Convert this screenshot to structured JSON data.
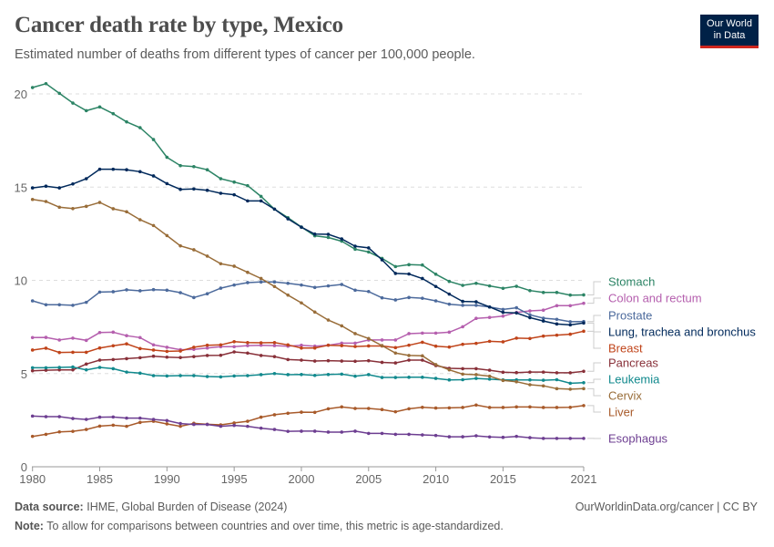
{
  "header": {
    "title": "Cancer death rate by type, Mexico",
    "subtitle": "Estimated number of deaths from different types of cancer per 100,000 people.",
    "logo_line1": "Our World",
    "logo_line2": "in Data"
  },
  "footer": {
    "source_label": "Data source:",
    "source": "IHME, Global Burden of Disease (2024)",
    "url": "OurWorldinData.org/cancer | CC BY",
    "note_label": "Note:",
    "note": "To allow for comparisons between countries and over time, this metric is age-standardized."
  },
  "chart_data": {
    "type": "line",
    "title": "Cancer death rate by type, Mexico",
    "xlim": [
      1980,
      2021
    ],
    "ylim": [
      0,
      20
    ],
    "y_ticks": [
      0,
      5,
      10,
      15,
      20
    ],
    "x_ticks": [
      1980,
      1985,
      1990,
      1995,
      2000,
      2005,
      2010,
      2015,
      2021
    ],
    "grid": "horizontal dashed",
    "legend": "right (line labels)",
    "x_start": 1980,
    "series": [
      {
        "name": "Stomach",
        "color": "#2c8465",
        "values": [
          20.34,
          20.55,
          20.03,
          19.51,
          19.1,
          19.3,
          18.94,
          18.5,
          18.19,
          17.55,
          16.6,
          16.15,
          16.1,
          15.93,
          15.45,
          15.27,
          15.08,
          14.5,
          13.82,
          13.36,
          12.86,
          12.39,
          12.3,
          12.1,
          11.67,
          11.52,
          11.18,
          10.74,
          10.84,
          10.82,
          10.33,
          9.94,
          9.73,
          9.84,
          9.7,
          9.57,
          9.68,
          9.45,
          9.35,
          9.35,
          9.21,
          9.22
        ]
      },
      {
        "name": "Colon and rectum",
        "color": "#b55fae",
        "values": [
          6.93,
          6.94,
          6.8,
          6.9,
          6.78,
          7.2,
          7.22,
          7.03,
          6.93,
          6.54,
          6.41,
          6.28,
          6.3,
          6.37,
          6.44,
          6.44,
          6.5,
          6.52,
          6.5,
          6.47,
          6.52,
          6.47,
          6.52,
          6.63,
          6.63,
          6.8,
          6.8,
          6.8,
          7.14,
          7.17,
          7.17,
          7.22,
          7.51,
          7.96,
          8.01,
          8.08,
          8.28,
          8.36,
          8.4,
          8.64,
          8.64,
          8.77
        ]
      },
      {
        "name": "Prostate",
        "color": "#4c6a9c",
        "values": [
          8.9,
          8.69,
          8.69,
          8.66,
          8.82,
          9.37,
          9.39,
          9.49,
          9.44,
          9.5,
          9.47,
          9.34,
          9.08,
          9.28,
          9.58,
          9.75,
          9.88,
          9.91,
          9.91,
          9.84,
          9.75,
          9.62,
          9.7,
          9.78,
          9.47,
          9.4,
          9.06,
          8.95,
          9.08,
          9.04,
          8.9,
          8.72,
          8.66,
          8.66,
          8.57,
          8.44,
          8.53,
          8.15,
          7.97,
          7.91,
          7.78,
          7.79
        ]
      },
      {
        "name": "Lung, trachea and bronchus",
        "color": "#00295b",
        "values": [
          14.96,
          15.05,
          14.96,
          15.17,
          15.45,
          15.96,
          15.96,
          15.93,
          15.83,
          15.6,
          15.19,
          14.88,
          14.9,
          14.83,
          14.67,
          14.59,
          14.26,
          14.26,
          13.82,
          13.3,
          12.85,
          12.48,
          12.47,
          12.22,
          11.83,
          11.74,
          11.1,
          10.37,
          10.34,
          10.1,
          9.67,
          9.26,
          8.87,
          8.85,
          8.57,
          8.28,
          8.25,
          8.0,
          7.82,
          7.66,
          7.61,
          7.71
        ]
      },
      {
        "name": "Breast",
        "color": "#c0441a",
        "values": [
          6.26,
          6.36,
          6.13,
          6.14,
          6.14,
          6.37,
          6.49,
          6.59,
          6.34,
          6.26,
          6.19,
          6.21,
          6.41,
          6.52,
          6.54,
          6.71,
          6.66,
          6.65,
          6.66,
          6.54,
          6.37,
          6.37,
          6.52,
          6.5,
          6.45,
          6.48,
          6.48,
          6.39,
          6.52,
          6.68,
          6.47,
          6.42,
          6.57,
          6.62,
          6.73,
          6.7,
          6.9,
          6.88,
          7.01,
          7.06,
          7.11,
          7.27
        ]
      },
      {
        "name": "Pancreas",
        "color": "#883039",
        "values": [
          5.15,
          5.18,
          5.2,
          5.2,
          5.51,
          5.72,
          5.75,
          5.8,
          5.85,
          5.93,
          5.88,
          5.86,
          5.91,
          5.97,
          5.98,
          6.16,
          6.1,
          5.97,
          5.91,
          5.75,
          5.72,
          5.67,
          5.69,
          5.67,
          5.66,
          5.69,
          5.6,
          5.57,
          5.72,
          5.72,
          5.43,
          5.28,
          5.26,
          5.26,
          5.18,
          5.07,
          5.05,
          5.08,
          5.08,
          5.04,
          5.04,
          5.12
        ]
      },
      {
        "name": "Leukemia",
        "color": "#11898d",
        "values": [
          5.31,
          5.31,
          5.33,
          5.35,
          5.2,
          5.33,
          5.26,
          5.08,
          5.02,
          4.89,
          4.87,
          4.89,
          4.89,
          4.84,
          4.82,
          4.87,
          4.89,
          4.94,
          5.0,
          4.94,
          4.95,
          4.9,
          4.95,
          4.97,
          4.86,
          4.94,
          4.79,
          4.79,
          4.8,
          4.8,
          4.74,
          4.66,
          4.67,
          4.74,
          4.7,
          4.66,
          4.66,
          4.66,
          4.64,
          4.67,
          4.48,
          4.51
        ]
      },
      {
        "name": "Cervix",
        "color": "#996d39",
        "values": [
          14.34,
          14.23,
          13.92,
          13.85,
          13.97,
          14.18,
          13.84,
          13.68,
          13.25,
          12.94,
          12.4,
          11.85,
          11.64,
          11.3,
          10.89,
          10.76,
          10.43,
          10.1,
          9.67,
          9.21,
          8.79,
          8.3,
          7.87,
          7.56,
          7.14,
          6.88,
          6.5,
          6.1,
          5.97,
          5.95,
          5.48,
          5.2,
          4.97,
          4.94,
          4.86,
          4.63,
          4.56,
          4.4,
          4.34,
          4.19,
          4.16,
          4.19
        ]
      },
      {
        "name": "Liver",
        "color": "#a85a2a",
        "values": [
          1.63,
          1.74,
          1.87,
          1.9,
          2.0,
          2.18,
          2.23,
          2.17,
          2.38,
          2.44,
          2.3,
          2.17,
          2.33,
          2.28,
          2.25,
          2.35,
          2.44,
          2.66,
          2.79,
          2.87,
          2.93,
          2.92,
          3.11,
          3.21,
          3.13,
          3.13,
          3.07,
          2.95,
          3.11,
          3.19,
          3.15,
          3.16,
          3.18,
          3.31,
          3.18,
          3.18,
          3.21,
          3.21,
          3.18,
          3.18,
          3.19,
          3.28
        ]
      },
      {
        "name": "Esophagus",
        "color": "#6d3e91",
        "values": [
          2.72,
          2.69,
          2.69,
          2.59,
          2.54,
          2.66,
          2.67,
          2.61,
          2.61,
          2.54,
          2.48,
          2.32,
          2.27,
          2.27,
          2.17,
          2.22,
          2.17,
          2.07,
          2.0,
          1.9,
          1.91,
          1.91,
          1.86,
          1.86,
          1.91,
          1.79,
          1.79,
          1.74,
          1.74,
          1.71,
          1.68,
          1.61,
          1.61,
          1.66,
          1.6,
          1.58,
          1.63,
          1.56,
          1.52,
          1.52,
          1.52,
          1.52
        ]
      }
    ]
  }
}
